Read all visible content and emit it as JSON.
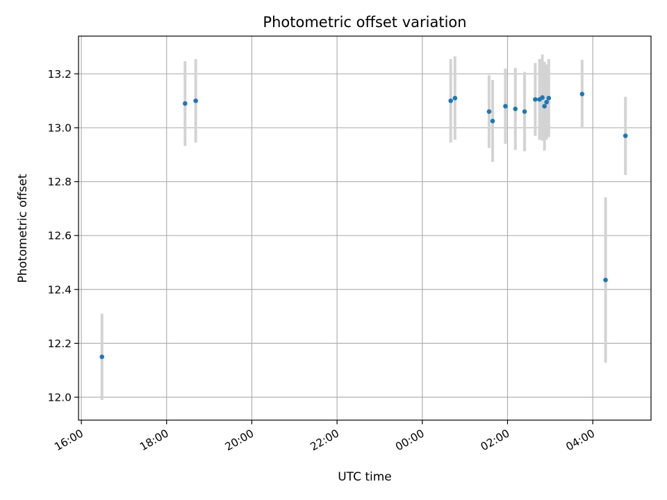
{
  "chart_data": {
    "type": "scatter",
    "title": "Photometric offset variation",
    "xlabel": "UTC time",
    "ylabel": "Photometric offset",
    "x_axis": "time",
    "xlim": [
      "15:56",
      "29:22"
    ],
    "ylim": [
      11.915,
      13.34
    ],
    "xticks": [
      "16:00",
      "18:00",
      "20:00",
      "22:00",
      "00:00",
      "02:00",
      "04:00"
    ],
    "yticks": [
      "12.0",
      "12.2",
      "12.4",
      "12.6",
      "12.8",
      "13.0",
      "13.2"
    ],
    "grid": true,
    "legend": "none",
    "colors": {
      "point": "#1f77b4",
      "errorbar": "#d3d3d3",
      "grid": "#b0b0b0"
    },
    "points": [
      {
        "x": "16:29",
        "y": 12.15,
        "err": 0.16
      },
      {
        "x": "18:26",
        "y": 13.09,
        "err": 0.157
      },
      {
        "x": "18:41",
        "y": 13.1,
        "err": 0.155
      },
      {
        "x": "00:40",
        "y": 13.1,
        "err": 0.155
      },
      {
        "x": "00:46",
        "y": 13.11,
        "err": 0.155
      },
      {
        "x": "01:34",
        "y": 13.06,
        "err": 0.135
      },
      {
        "x": "01:39",
        "y": 13.025,
        "err": 0.152
      },
      {
        "x": "01:57",
        "y": 13.08,
        "err": 0.14
      },
      {
        "x": "02:11",
        "y": 13.07,
        "err": 0.152
      },
      {
        "x": "02:24",
        "y": 13.06,
        "err": 0.147
      },
      {
        "x": "02:39",
        "y": 13.105,
        "err": 0.135
      },
      {
        "x": "02:45",
        "y": 13.105,
        "err": 0.15
      },
      {
        "x": "02:49",
        "y": 13.112,
        "err": 0.16
      },
      {
        "x": "02:52",
        "y": 13.08,
        "err": 0.165
      },
      {
        "x": "02:55",
        "y": 13.095,
        "err": 0.14
      },
      {
        "x": "02:58",
        "y": 13.11,
        "err": 0.145
      },
      {
        "x": "03:45",
        "y": 13.125,
        "err": 0.127
      },
      {
        "x": "04:18",
        "y": 12.435,
        "err": 0.307
      },
      {
        "x": "04:46",
        "y": 12.97,
        "err": 0.145
      }
    ]
  }
}
